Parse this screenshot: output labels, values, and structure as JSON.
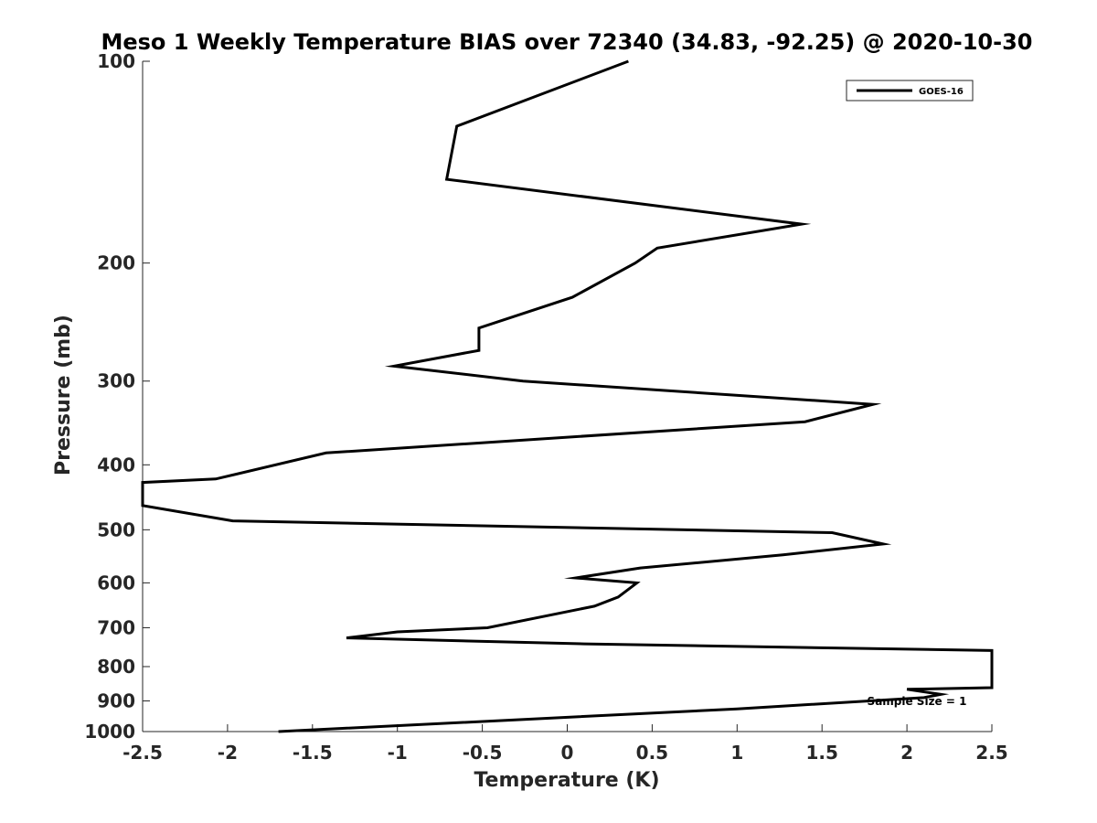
{
  "chart_data": {
    "type": "line",
    "title": "Meso 1 Weekly Temperature BIAS over 72340 (34.83, -92.25) @ 2020-10-30",
    "xlabel": "Temperature (K)",
    "ylabel": "Pressure (mb)",
    "xlim": [
      -2.5,
      2.5
    ],
    "ylim": [
      100,
      1000
    ],
    "y_scale": "log",
    "y_reversed": true,
    "grid": false,
    "legend_position": "top-right",
    "x_ticks": [
      -2.5,
      -2,
      -1.5,
      -1,
      -0.5,
      0,
      0.5,
      1,
      1.5,
      2,
      2.5
    ],
    "x_tick_labels": [
      "-2.5",
      "-2",
      "-1.5",
      "-1",
      "-0.5",
      "0",
      "0.5",
      "1",
      "1.5",
      "2",
      "2.5"
    ],
    "y_ticks": [
      100,
      200,
      300,
      400,
      500,
      600,
      700,
      800,
      900,
      1000
    ],
    "y_tick_labels": [
      "100",
      "200",
      "300",
      "400",
      "500",
      "600",
      "700",
      "800",
      "900",
      "1000"
    ],
    "series": [
      {
        "name": "GOES-16",
        "color": "#000000",
        "x": [
          0.36,
          -0.65,
          -0.71,
          1.38,
          0.53,
          0.4,
          0.03,
          -0.52,
          -0.52,
          -1.02,
          -0.26,
          1.8,
          1.4,
          -1.42,
          -2.07,
          -2.5,
          -2.5,
          -1.97,
          1.56,
          1.86,
          1.27,
          0.43,
          0.05,
          0.41,
          0.3,
          0.16,
          -0.47,
          -1.0,
          -1.3,
          0.1,
          2.5,
          2.5,
          2.0,
          2.2,
          2.1,
          1.0,
          -1.7
        ],
        "y": [
          100,
          125,
          150,
          175,
          190,
          200,
          225,
          250,
          270,
          285,
          300,
          325,
          345,
          384,
          420,
          425,
          460,
          485,
          505,
          525,
          545,
          570,
          590,
          600,
          630,
          650,
          700,
          710,
          725,
          740,
          757,
          860,
          865,
          880,
          890,
          925,
          1000
        ]
      }
    ],
    "annotations": [
      "Sample Size = 1"
    ]
  }
}
